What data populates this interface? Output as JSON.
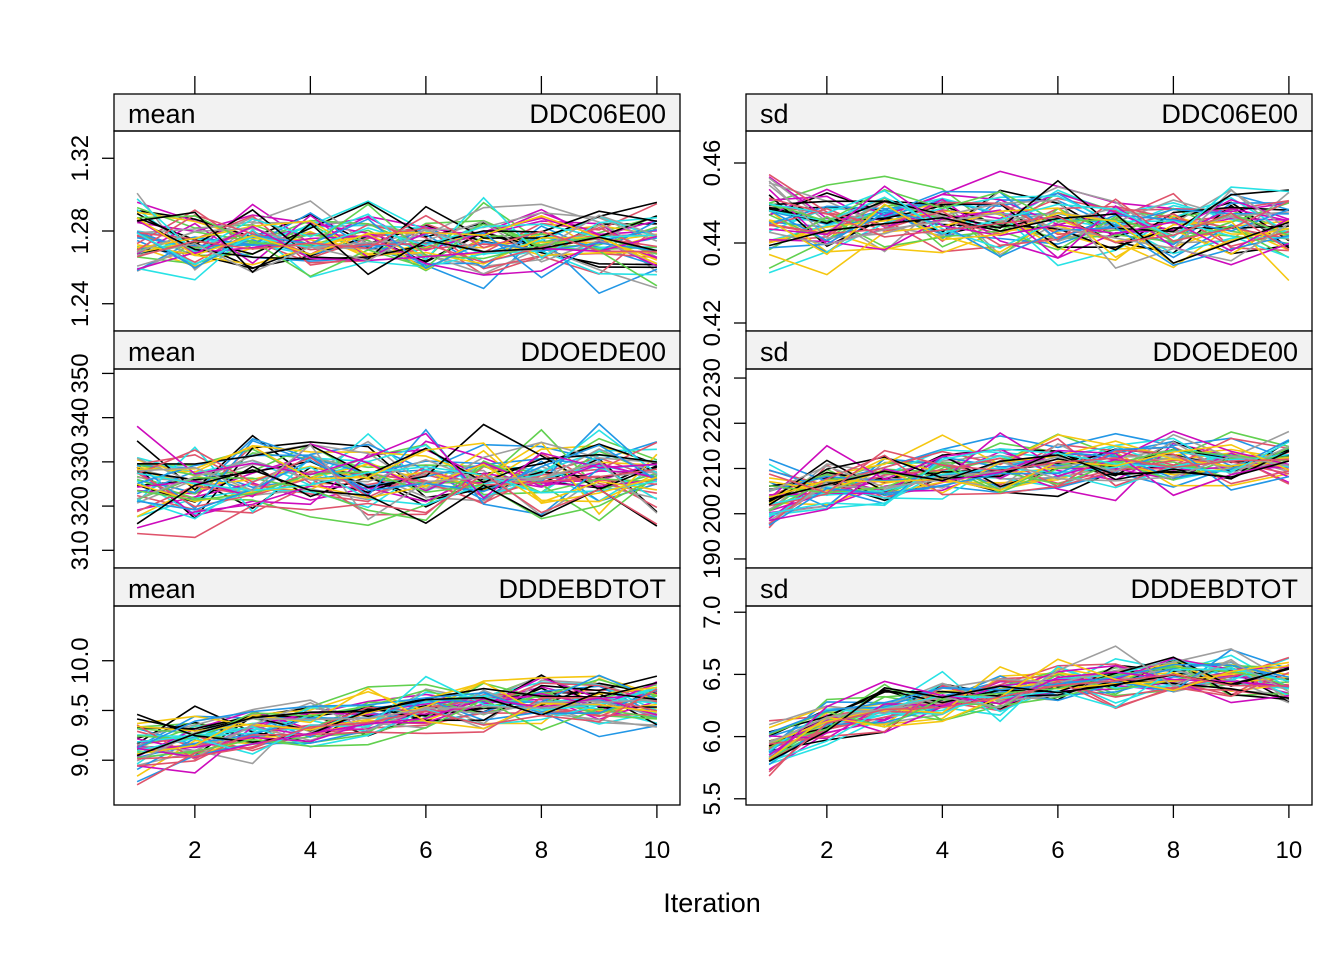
{
  "chart_data": {
    "type": "line",
    "xlabel": "Iteration",
    "n_series": 50,
    "iterations": [
      1,
      2,
      3,
      4,
      5,
      6,
      7,
      8,
      9,
      10
    ],
    "x_ticks": [
      2,
      4,
      6,
      8,
      10
    ],
    "xlim": [
      0.6,
      10.4
    ],
    "palette": [
      "#000000",
      "#DF536B",
      "#61D04F",
      "#2297E6",
      "#28E2E5",
      "#CD0BBC",
      "#F5C710",
      "#9E9E9E"
    ],
    "panels": [
      {
        "stat": "mean",
        "variable": "DDC06E00",
        "ylim": [
          1.225,
          1.335
        ],
        "yticks": [
          "1.24",
          "1.28",
          "1.32"
        ],
        "ytick_values": [
          1.24,
          1.28,
          1.32
        ],
        "trend": [
          1.278,
          1.274,
          1.276,
          1.275,
          1.274,
          1.273,
          1.273,
          1.274,
          1.274,
          1.274
        ],
        "spread": 0.012
      },
      {
        "stat": "sd",
        "variable": "DDC06E00",
        "ylim": [
          0.418,
          0.468
        ],
        "yticks": [
          "0.42",
          "0.44",
          "0.46"
        ],
        "ytick_values": [
          0.42,
          0.44,
          0.46
        ],
        "trend": [
          0.446,
          0.445,
          0.446,
          0.446,
          0.445,
          0.445,
          0.444,
          0.444,
          0.444,
          0.444
        ],
        "spread": 0.006
      },
      {
        "stat": "mean",
        "variable": "DDOEDE00",
        "ylim": [
          306,
          351
        ],
        "yticks": [
          "310",
          "320",
          "330",
          "340",
          "350"
        ],
        "ytick_values": [
          310,
          320,
          330,
          340,
          350
        ],
        "trend": [
          324,
          325,
          326,
          327,
          326,
          326,
          326,
          327,
          327,
          327
        ],
        "spread": 6
      },
      {
        "stat": "sd",
        "variable": "DDOEDE00",
        "ylim": [
          188,
          232
        ],
        "yticks": [
          "190",
          "200",
          "210",
          "220",
          "230"
        ],
        "ytick_values": [
          190,
          200,
          210,
          220,
          230
        ],
        "trend": [
          203,
          206,
          208,
          210,
          210,
          211,
          211,
          212,
          211,
          212
        ],
        "spread": 4
      },
      {
        "stat": "mean",
        "variable": "DDDEBDTOT",
        "ylim": [
          8.55,
          10.55
        ],
        "yticks": [
          "9.0",
          "9.5",
          "10.0"
        ],
        "ytick_values": [
          9.0,
          9.5,
          10.0
        ],
        "trend": [
          9.12,
          9.22,
          9.3,
          9.38,
          9.43,
          9.52,
          9.56,
          9.6,
          9.6,
          9.55
        ],
        "spread": 0.18
      },
      {
        "stat": "sd",
        "variable": "DDDEBDTOT",
        "ylim": [
          5.45,
          7.05
        ],
        "yticks": [
          "5.5",
          "6.0",
          "6.5",
          "7.0"
        ],
        "ytick_values": [
          5.5,
          6.0,
          6.5,
          7.0
        ],
        "trend": [
          5.9,
          6.12,
          6.22,
          6.3,
          6.35,
          6.42,
          6.45,
          6.48,
          6.48,
          6.44
        ],
        "spread": 0.12
      }
    ]
  }
}
